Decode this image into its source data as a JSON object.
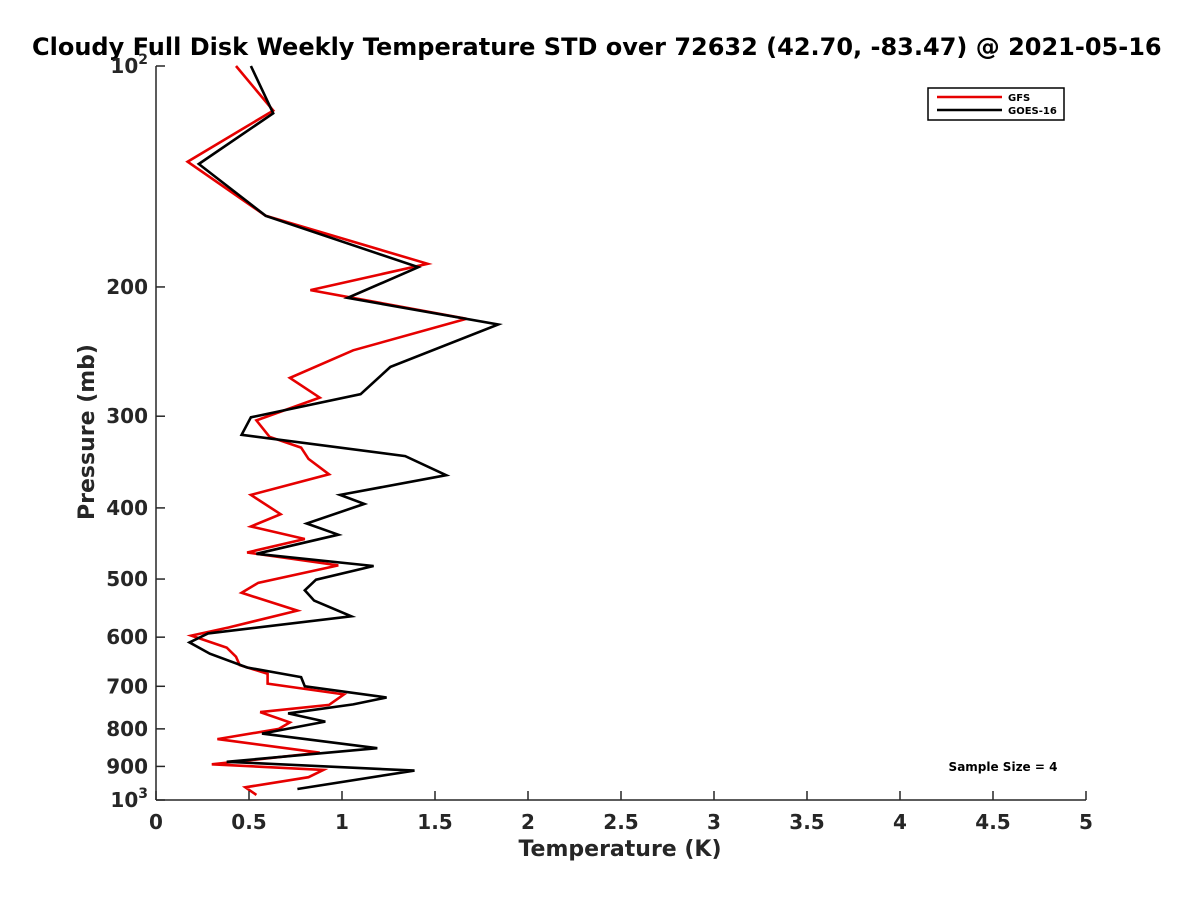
{
  "chart_data": {
    "type": "line",
    "title": "Cloudy Full Disk Weekly Temperature STD over 72632 (42.70, -83.47) @ 2021-05-16",
    "xlabel": "Temperature (K)",
    "ylabel": "Pressure (mb)",
    "xlim": [
      0,
      5
    ],
    "ylim": [
      100,
      1000
    ],
    "y_scale": "log",
    "y_reversed": true,
    "x_ticks": [
      "0",
      "0.5",
      "1",
      "1.5",
      "2",
      "2.5",
      "3",
      "3.5",
      "4",
      "4.5",
      "5"
    ],
    "y_ticks": [
      {
        "value": 100,
        "base": "10",
        "exp": "2"
      },
      {
        "value": 200,
        "label": "200"
      },
      {
        "value": 300,
        "label": "300"
      },
      {
        "value": 400,
        "label": "400"
      },
      {
        "value": 500,
        "label": "500"
      },
      {
        "value": 600,
        "label": "600"
      },
      {
        "value": 700,
        "label": "700"
      },
      {
        "value": 800,
        "label": "800"
      },
      {
        "value": 900,
        "label": "900"
      },
      {
        "value": 1000,
        "base": "10",
        "exp": "3"
      }
    ],
    "legend_position": "top-right",
    "annotation": "Sample Size = 4",
    "series": [
      {
        "name": "GFS",
        "color": "#e60000",
        "points": [
          [
            0.43,
            100
          ],
          [
            0.63,
            115
          ],
          [
            0.17,
            135
          ],
          [
            0.59,
            160
          ],
          [
            1.46,
            186
          ],
          [
            0.83,
            202
          ],
          [
            1.67,
            221
          ],
          [
            1.06,
            244
          ],
          [
            0.72,
            266
          ],
          [
            0.88,
            283
          ],
          [
            0.54,
            304
          ],
          [
            0.61,
            320
          ],
          [
            0.78,
            331
          ],
          [
            0.82,
            343
          ],
          [
            0.93,
            360
          ],
          [
            0.51,
            384
          ],
          [
            0.67,
            408
          ],
          [
            0.51,
            424
          ],
          [
            0.8,
            441
          ],
          [
            0.49,
            460
          ],
          [
            0.98,
            479
          ],
          [
            0.55,
            506
          ],
          [
            0.46,
            522
          ],
          [
            0.76,
            552
          ],
          [
            0.39,
            582
          ],
          [
            0.19,
            597
          ],
          [
            0.38,
            620
          ],
          [
            0.43,
            638
          ],
          [
            0.45,
            655
          ],
          [
            0.6,
            673
          ],
          [
            0.6,
            694
          ],
          [
            1.01,
            718
          ],
          [
            0.93,
            742
          ],
          [
            0.56,
            759
          ],
          [
            0.72,
            784
          ],
          [
            0.66,
            800
          ],
          [
            0.33,
            826
          ],
          [
            0.88,
            862
          ],
          [
            0.3,
            894
          ],
          [
            0.9,
            910
          ],
          [
            0.82,
            931
          ],
          [
            0.48,
            961
          ],
          [
            0.54,
            984
          ]
        ]
      },
      {
        "name": "GOES-16",
        "color": "#000000",
        "points": [
          [
            0.51,
            100
          ],
          [
            0.63,
            116
          ],
          [
            0.23,
            136
          ],
          [
            0.59,
            160
          ],
          [
            1.41,
            188
          ],
          [
            1.03,
            207
          ],
          [
            1.84,
            225
          ],
          [
            1.26,
            257
          ],
          [
            1.1,
            280
          ],
          [
            0.51,
            301
          ],
          [
            0.46,
            318
          ],
          [
            1.34,
            340
          ],
          [
            1.56,
            361
          ],
          [
            0.99,
            384
          ],
          [
            1.12,
            395
          ],
          [
            0.81,
            420
          ],
          [
            0.98,
            435
          ],
          [
            0.54,
            462
          ],
          [
            1.17,
            480
          ],
          [
            0.86,
            501
          ],
          [
            0.8,
            518
          ],
          [
            0.85,
            535
          ],
          [
            1.05,
            562
          ],
          [
            0.28,
            593
          ],
          [
            0.18,
            610
          ],
          [
            0.29,
            632
          ],
          [
            0.49,
            660
          ],
          [
            0.78,
            680
          ],
          [
            0.8,
            700
          ],
          [
            1.24,
            725
          ],
          [
            1.06,
            741
          ],
          [
            0.71,
            762
          ],
          [
            0.91,
            782
          ],
          [
            0.57,
            812
          ],
          [
            1.19,
            850
          ],
          [
            0.38,
            887
          ],
          [
            1.39,
            912
          ],
          [
            0.76,
            966
          ]
        ]
      }
    ]
  }
}
